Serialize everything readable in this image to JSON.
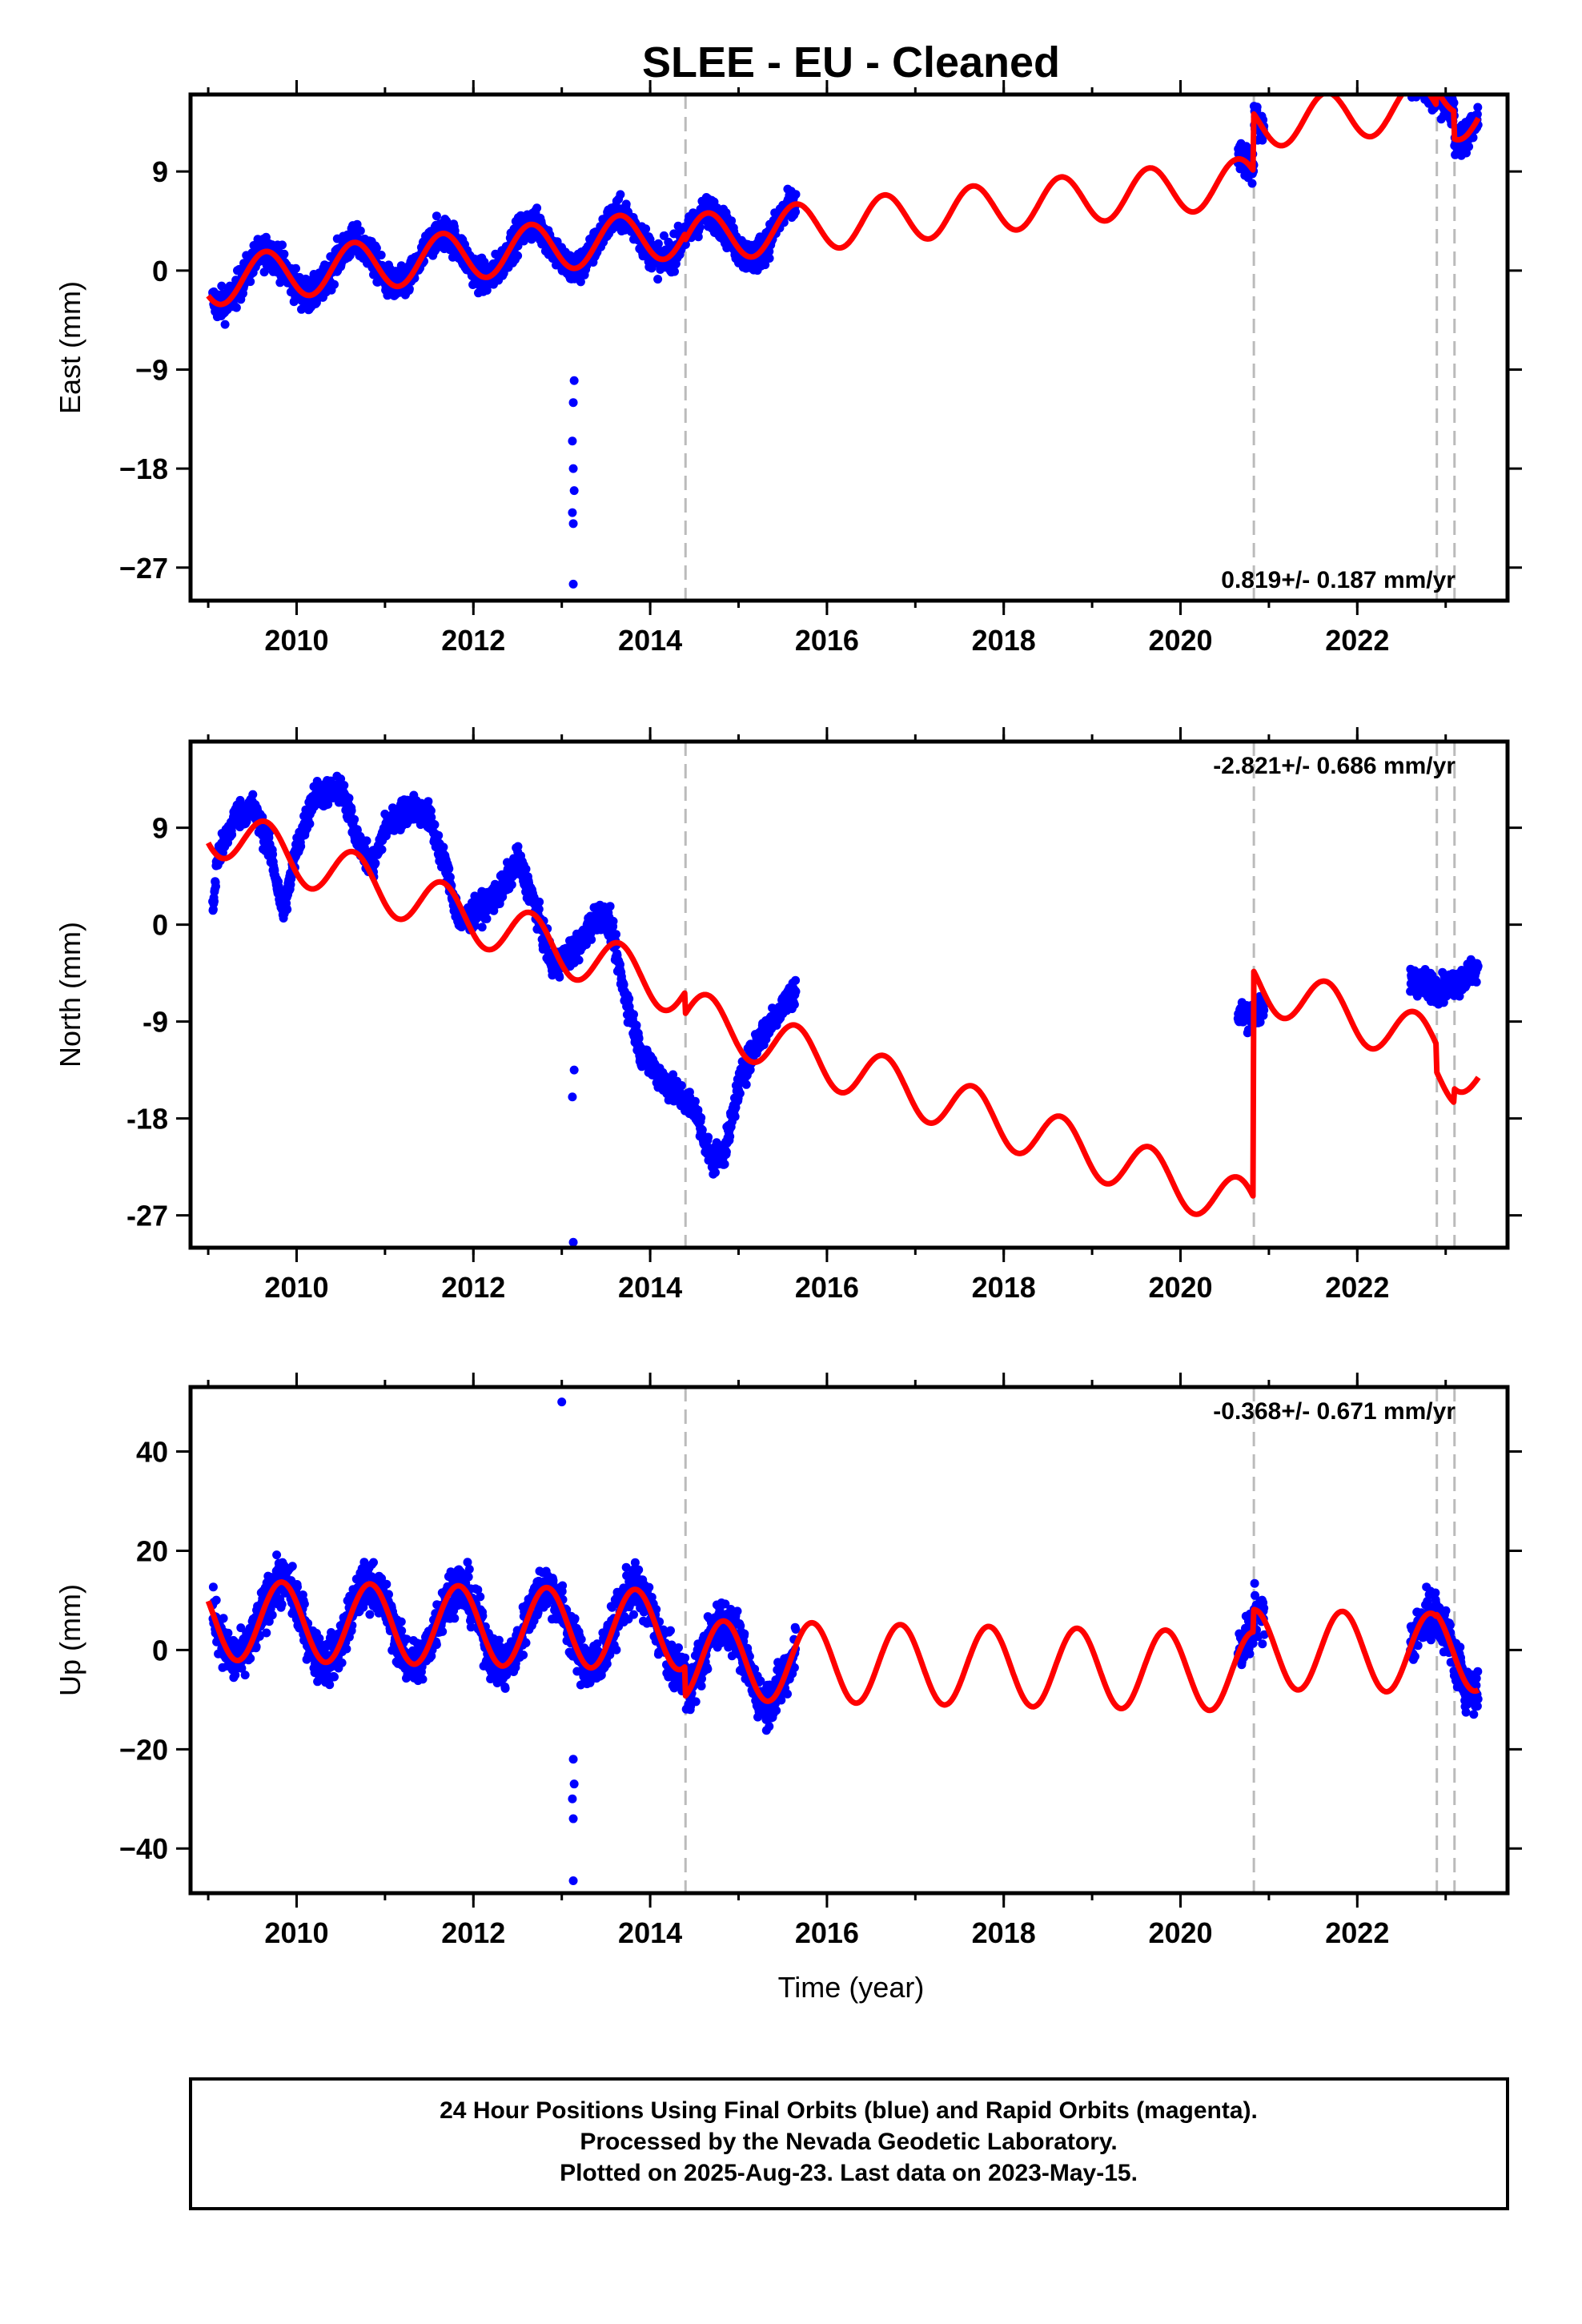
{
  "title": "SLEE  - EU - Cleaned",
  "xlabel": "Time (year)",
  "footer": {
    "line1": "24 Hour Positions Using Final Orbits (blue) and Rapid Orbits (magenta).",
    "line2": "Processed by the Nevada Geodetic Laboratory.",
    "line3": "Plotted on 2025-Aug-23. Last data on 2023-May-15."
  },
  "colors": {
    "data": "#0000ff",
    "model": "#ff0000",
    "steps": "#bbbbbb",
    "frame": "#000000"
  },
  "chart_data": [
    {
      "type": "scatter",
      "component": "East",
      "ylabel": "East (mm)",
      "rate_label": "0.819+/- 0.187 mm/yr",
      "xlim": [
        2008.8,
        2023.7
      ],
      "ylim": [
        -30,
        16
      ],
      "xticks": [
        2010,
        2012,
        2014,
        2016,
        2018,
        2020,
        2022
      ],
      "xtick_labels": [
        "2010",
        "2012",
        "2014",
        "2016",
        "2018",
        "2020",
        "2022"
      ],
      "yticks": [
        -27,
        -18,
        -9,
        0,
        9
      ],
      "ytick_labels": [
        "−27",
        "−18",
        "−9",
        "0",
        "9"
      ],
      "steps": [
        2014.4,
        2020.83,
        2022.9,
        2023.1
      ],
      "data_segments": [
        [
          2009.05,
          2015.65
        ],
        [
          2020.65,
          2020.95
        ],
        [
          2022.6,
          2023.37
        ]
      ],
      "model": {
        "breaks": [
          {
            "start": 2009.0,
            "end": 2014.4,
            "offset": -1.0
          },
          {
            "start": 2014.4,
            "end": 2020.83,
            "offset": -1.6
          },
          {
            "start": 2020.83,
            "end": 2022.9,
            "offset": 3.6
          },
          {
            "start": 2022.9,
            "end": 2023.1,
            "offset": 5.0
          },
          {
            "start": 2023.1,
            "end": 2023.37,
            "offset": 2.5
          }
        ],
        "trend": 0.819,
        "ref_year": 2009.0,
        "amplitude": 2.2,
        "phase_year": 0.4
      },
      "noise": 1.4,
      "outliers": [
        [
          2013.13,
          -28.5
        ],
        [
          2013.13,
          -23.0
        ],
        [
          2013.12,
          -22.0
        ],
        [
          2013.14,
          -20.0
        ],
        [
          2013.13,
          -18.0
        ],
        [
          2013.12,
          -15.5
        ],
        [
          2013.13,
          -12.0
        ],
        [
          2013.14,
          -10.0
        ]
      ]
    },
    {
      "type": "scatter",
      "component": "North",
      "ylabel": "North (mm)",
      "rate_label": "-2.821+/- 0.686 mm/yr",
      "xlim": [
        2008.8,
        2023.7
      ],
      "ylim": [
        -30,
        17
      ],
      "xticks": [
        2010,
        2012,
        2014,
        2016,
        2018,
        2020,
        2022
      ],
      "xtick_labels": [
        "2010",
        "2012",
        "2014",
        "2016",
        "2018",
        "2020",
        "2022"
      ],
      "yticks": [
        -27,
        -18,
        -9,
        0,
        9
      ],
      "ytick_labels": [
        "-27",
        "-18",
        "-9",
        "0",
        "9"
      ],
      "steps": [
        2014.4,
        2020.83,
        2022.9,
        2023.1
      ],
      "data_segments": [
        [
          2009.05,
          2015.65
        ],
        [
          2020.65,
          2020.95
        ],
        [
          2022.6,
          2023.37
        ]
      ],
      "data_path": [
        [
          2009.05,
          1
        ],
        [
          2009.1,
          6
        ],
        [
          2009.3,
          10
        ],
        [
          2009.5,
          11
        ],
        [
          2009.7,
          7
        ],
        [
          2009.85,
          1
        ],
        [
          2010.0,
          7
        ],
        [
          2010.2,
          12
        ],
        [
          2010.5,
          12.5
        ],
        [
          2010.7,
          8
        ],
        [
          2010.85,
          5
        ],
        [
          2011.0,
          9
        ],
        [
          2011.3,
          11
        ],
        [
          2011.5,
          10
        ],
        [
          2011.7,
          5
        ],
        [
          2011.85,
          0
        ],
        [
          2012.0,
          1
        ],
        [
          2012.3,
          3
        ],
        [
          2012.5,
          6
        ],
        [
          2012.65,
          3
        ],
        [
          2012.9,
          -4
        ],
        [
          2013.2,
          -2
        ],
        [
          2013.4,
          1
        ],
        [
          2013.55,
          0
        ],
        [
          2013.7,
          -6
        ],
        [
          2013.9,
          -12
        ],
        [
          2014.2,
          -15
        ],
        [
          2014.5,
          -17
        ],
        [
          2014.7,
          -22
        ],
        [
          2014.85,
          -21
        ],
        [
          2015.0,
          -15
        ],
        [
          2015.2,
          -11
        ],
        [
          2015.45,
          -8
        ],
        [
          2015.65,
          -6
        ],
        [
          2020.65,
          -8.5
        ],
        [
          2020.95,
          -8
        ],
        [
          2022.6,
          -5
        ],
        [
          2022.95,
          -6
        ],
        [
          2023.2,
          -5
        ],
        [
          2023.37,
          -4
        ]
      ],
      "model": {
        "breaks": [
          {
            "start": 2009.0,
            "end": 2014.4,
            "offset": 9.0
          },
          {
            "start": 2014.4,
            "end": 2020.83,
            "offset": 7.0
          },
          {
            "start": 2020.83,
            "end": 2022.9,
            "offset": 28.0
          },
          {
            "start": 2022.9,
            "end": 2023.1,
            "offset": 25.5
          },
          {
            "start": 2023.1,
            "end": 2023.37,
            "offset": 26.8
          }
        ],
        "trend": -2.821,
        "ref_year": 2009.0,
        "amplitude": 2.4,
        "phase_year": 0.4
      },
      "noise": 1.2,
      "outliers": [
        [
          2013.13,
          -29.5
        ],
        [
          2013.12,
          -16.0
        ],
        [
          2013.14,
          -13.5
        ]
      ]
    },
    {
      "type": "scatter",
      "component": "Up",
      "ylabel": "Up (mm)",
      "rate_label": "-0.368+/- 0.671 mm/yr",
      "xlim": [
        2008.8,
        2023.7
      ],
      "ylim": [
        -49,
        53
      ],
      "xticks": [
        2010,
        2012,
        2014,
        2016,
        2018,
        2020,
        2022
      ],
      "xtick_labels": [
        "2010",
        "2012",
        "2014",
        "2016",
        "2018",
        "2020",
        "2022"
      ],
      "yticks": [
        -40,
        -20,
        0,
        20,
        40
      ],
      "ytick_labels": [
        "−40",
        "−20",
        "0",
        "20",
        "40"
      ],
      "steps": [
        2014.4,
        2020.83,
        2022.9,
        2023.1
      ],
      "data_segments": [
        [
          2009.05,
          2015.65
        ],
        [
          2020.65,
          2020.95
        ],
        [
          2022.6,
          2023.37
        ]
      ],
      "model": {
        "breaks": [
          {
            "start": 2009.0,
            "end": 2014.4,
            "offset": 6.0
          },
          {
            "start": 2014.4,
            "end": 2020.83,
            "offset": 0.0
          },
          {
            "start": 2020.83,
            "end": 2022.9,
            "offset": 4.5
          },
          {
            "start": 2022.9,
            "end": 2023.1,
            "offset": 5.0
          },
          {
            "start": 2023.1,
            "end": 2023.37,
            "offset": 5.0
          }
        ],
        "trend": -0.368,
        "ref_year": 2009.0,
        "amplitude": 8.0,
        "phase_year": 0.58
      },
      "noise": 4.5,
      "outliers": [
        [
          2013.0,
          50.0
        ],
        [
          2013.13,
          -46.5
        ],
        [
          2013.13,
          -34.0
        ],
        [
          2013.12,
          -30.0
        ],
        [
          2013.14,
          -27.0
        ],
        [
          2013.13,
          -22.0
        ]
      ]
    }
  ]
}
